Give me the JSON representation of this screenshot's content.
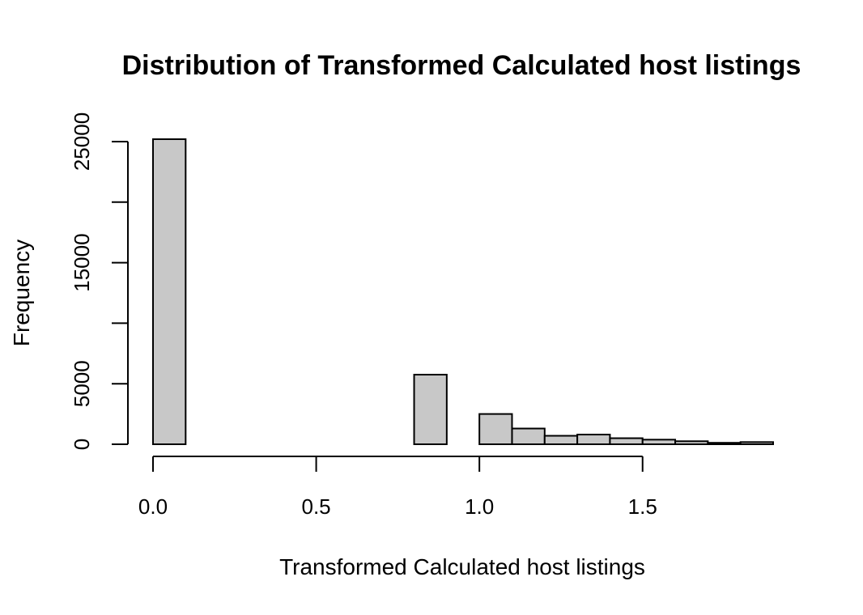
{
  "chart_data": {
    "type": "bar",
    "title": "Distribution of Transformed Calculated host listings",
    "xlabel": "Transformed Calculated host listings",
    "ylabel": "Frequency",
    "bin_width": 0.1,
    "bins": [
      {
        "x0": 0.0,
        "x1": 0.1,
        "count": 25200
      },
      {
        "x0": 0.1,
        "x1": 0.2,
        "count": 0
      },
      {
        "x0": 0.2,
        "x1": 0.3,
        "count": 0
      },
      {
        "x0": 0.3,
        "x1": 0.4,
        "count": 0
      },
      {
        "x0": 0.4,
        "x1": 0.5,
        "count": 0
      },
      {
        "x0": 0.5,
        "x1": 0.6,
        "count": 0
      },
      {
        "x0": 0.6,
        "x1": 0.7,
        "count": 0
      },
      {
        "x0": 0.7,
        "x1": 0.8,
        "count": 0
      },
      {
        "x0": 0.8,
        "x1": 0.9,
        "count": 5750
      },
      {
        "x0": 0.9,
        "x1": 1.0,
        "count": 0
      },
      {
        "x0": 1.0,
        "x1": 1.1,
        "count": 2500
      },
      {
        "x0": 1.1,
        "x1": 1.2,
        "count": 1300
      },
      {
        "x0": 1.2,
        "x1": 1.3,
        "count": 700
      },
      {
        "x0": 1.3,
        "x1": 1.4,
        "count": 800
      },
      {
        "x0": 1.4,
        "x1": 1.5,
        "count": 500
      },
      {
        "x0": 1.5,
        "x1": 1.6,
        "count": 380
      },
      {
        "x0": 1.6,
        "x1": 1.7,
        "count": 250
      },
      {
        "x0": 1.7,
        "x1": 1.8,
        "count": 120
      },
      {
        "x0": 1.8,
        "x1": 1.9,
        "count": 180
      }
    ],
    "x_ticks": [
      0.0,
      0.5,
      1.0,
      1.5
    ],
    "x_tick_labels": [
      "0.0",
      "0.5",
      "1.0",
      "1.5"
    ],
    "y_ticks": [
      0,
      5000,
      10000,
      15000,
      20000,
      25000
    ],
    "y_tick_labels": [
      "0",
      "5000",
      "",
      "15000",
      "",
      "25000"
    ],
    "xlim": [
      0.0,
      1.9
    ],
    "ylim": [
      0,
      25200
    ],
    "bar_color": "#c8c8c8",
    "grid": false,
    "legend": "none"
  }
}
